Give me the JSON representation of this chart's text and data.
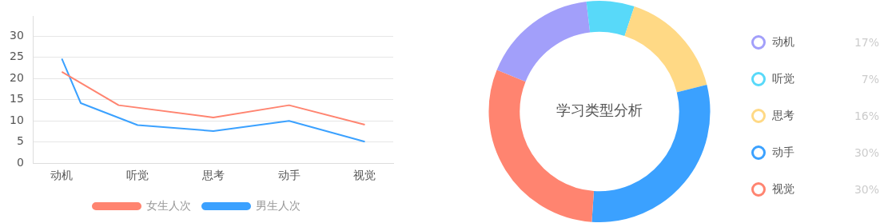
{
  "chart_data": [
    {
      "type": "line",
      "categories": [
        null,
        "动机",
        null,
        null,
        null,
        "听觉",
        null,
        null,
        null,
        "思考",
        null,
        null,
        null,
        "动手",
        null,
        null,
        null,
        "视觉",
        null
      ],
      "ylim": [
        0,
        34.7
      ],
      "yticks": [
        0,
        5,
        10,
        15,
        20,
        25,
        30
      ],
      "grid": "y",
      "legend": "bottom",
      "marker": "none",
      "series": [
        {
          "name": "女生人次",
          "color": "#ff8470",
          "values": [
            null,
            21.6,
            null,
            null,
            13.7,
            null,
            null,
            null,
            null,
            10.8,
            null,
            null,
            null,
            13.7,
            null,
            null,
            null,
            9.1,
            null
          ]
        },
        {
          "name": "男生人次",
          "color": "#3ba1ff",
          "values": [
            null,
            24.7,
            14.2,
            null,
            null,
            9.0,
            null,
            null,
            null,
            7.6,
            null,
            null,
            null,
            10.0,
            null,
            null,
            null,
            5.1,
            null
          ]
        }
      ]
    },
    {
      "type": "donut",
      "title": "学习类型分析",
      "categories": [
        "动机",
        "听觉",
        "思考",
        "动手",
        "视觉"
      ],
      "values": [
        17,
        7,
        16,
        30,
        30
      ],
      "value_labels": [
        "17%",
        "7%",
        "16%",
        "30%",
        "30%"
      ],
      "colors": [
        "#a29ffa",
        "#58d9f9",
        "#ffd985",
        "#3ba1ff",
        "#ff8470"
      ],
      "legend": "right"
    }
  ]
}
